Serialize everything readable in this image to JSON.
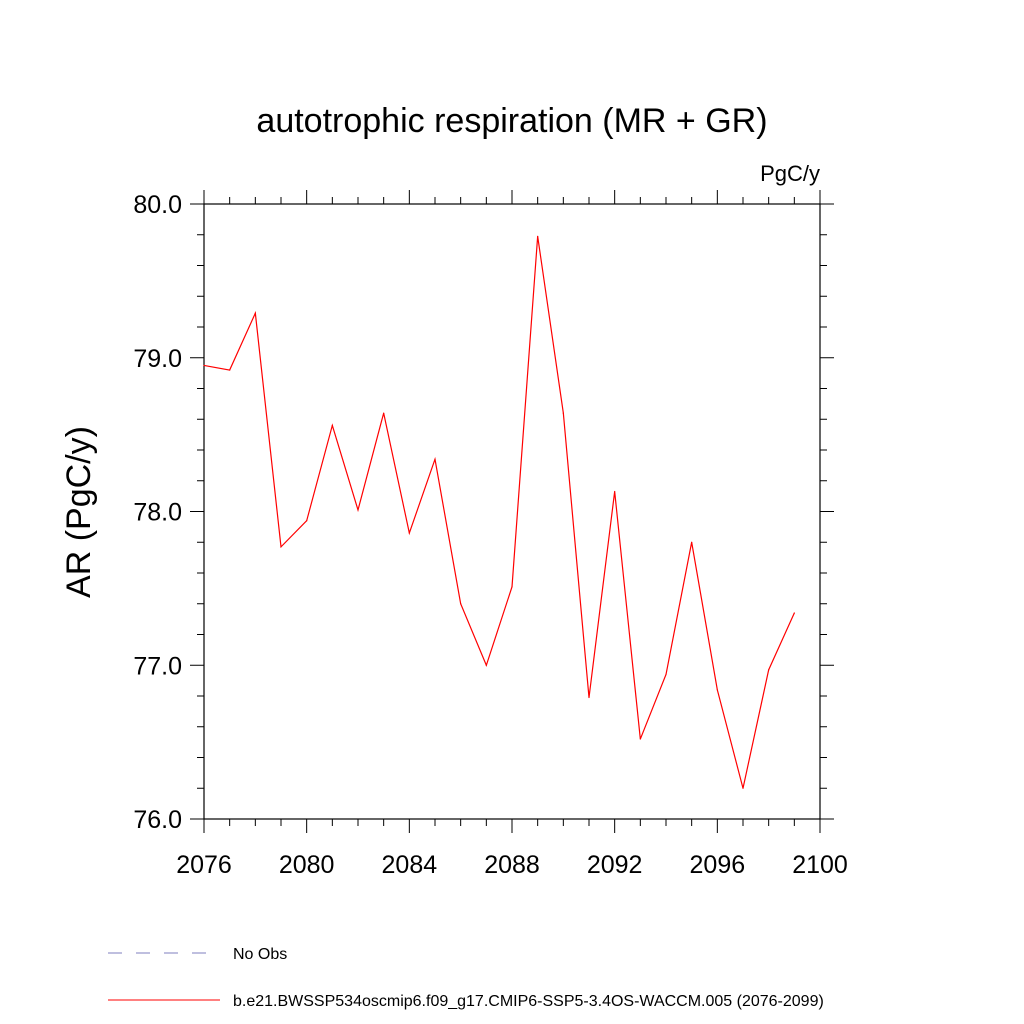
{
  "chart_data": {
    "type": "line",
    "title": "autotrophic respiration (MR + GR)",
    "units": "PgC/y",
    "xlabel": "",
    "ylabel": "AR  (PgC/y)",
    "xlim": [
      2076,
      2100
    ],
    "ylim": [
      76.0,
      80.0
    ],
    "x_ticks": [
      2076,
      2080,
      2084,
      2088,
      2092,
      2096,
      2100
    ],
    "x_tick_labels": [
      "2076",
      "2080",
      "2084",
      "2088",
      "2092",
      "2096",
      "2100"
    ],
    "y_ticks": [
      76.0,
      77.0,
      78.0,
      79.0,
      80.0
    ],
    "y_tick_labels": [
      "76.0",
      "77.0",
      "78.0",
      "79.0",
      "80.0"
    ],
    "series": [
      {
        "name": "b.e21.BWSSP534oscmip6.f09_g17.CMIP6-SSP5-3.4OS-WACCM.005 (2076-2099)",
        "color": "#ff0000",
        "style": "solid",
        "x": [
          2076,
          2077,
          2078,
          2079,
          2080,
          2081,
          2082,
          2083,
          2084,
          2085,
          2086,
          2087,
          2088,
          2089,
          2090,
          2091,
          2092,
          2093,
          2094,
          2095,
          2096,
          2097,
          2098,
          2099
        ],
        "values": [
          78.95,
          78.92,
          79.29,
          77.77,
          77.94,
          78.56,
          78.01,
          78.64,
          77.86,
          78.34,
          77.4,
          77.0,
          77.51,
          79.79,
          78.64,
          76.79,
          78.13,
          76.52,
          76.94,
          77.8,
          76.84,
          76.2,
          76.97,
          77.34
        ]
      }
    ],
    "legend": [
      {
        "label": "No Obs",
        "color": "#7f7fbf",
        "style": "dashed"
      },
      {
        "label": "b.e21.BWSSP534oscmip6.f09_g17.CMIP6-SSP5-3.4OS-WACCM.005 (2076-2099)",
        "color": "#ff0000",
        "style": "solid"
      }
    ]
  }
}
